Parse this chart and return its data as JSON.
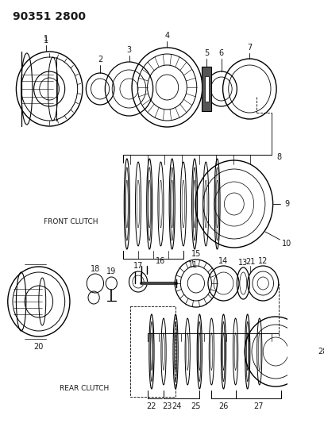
{
  "title": "90351 2800",
  "bg_color": "#ffffff",
  "line_color": "#1a1a1a",
  "title_fontsize": 10,
  "label_fontsize": 7,
  "front_clutch_label": "FRONT CLUTCH",
  "rear_clutch_label": "REAR CLUTCH"
}
